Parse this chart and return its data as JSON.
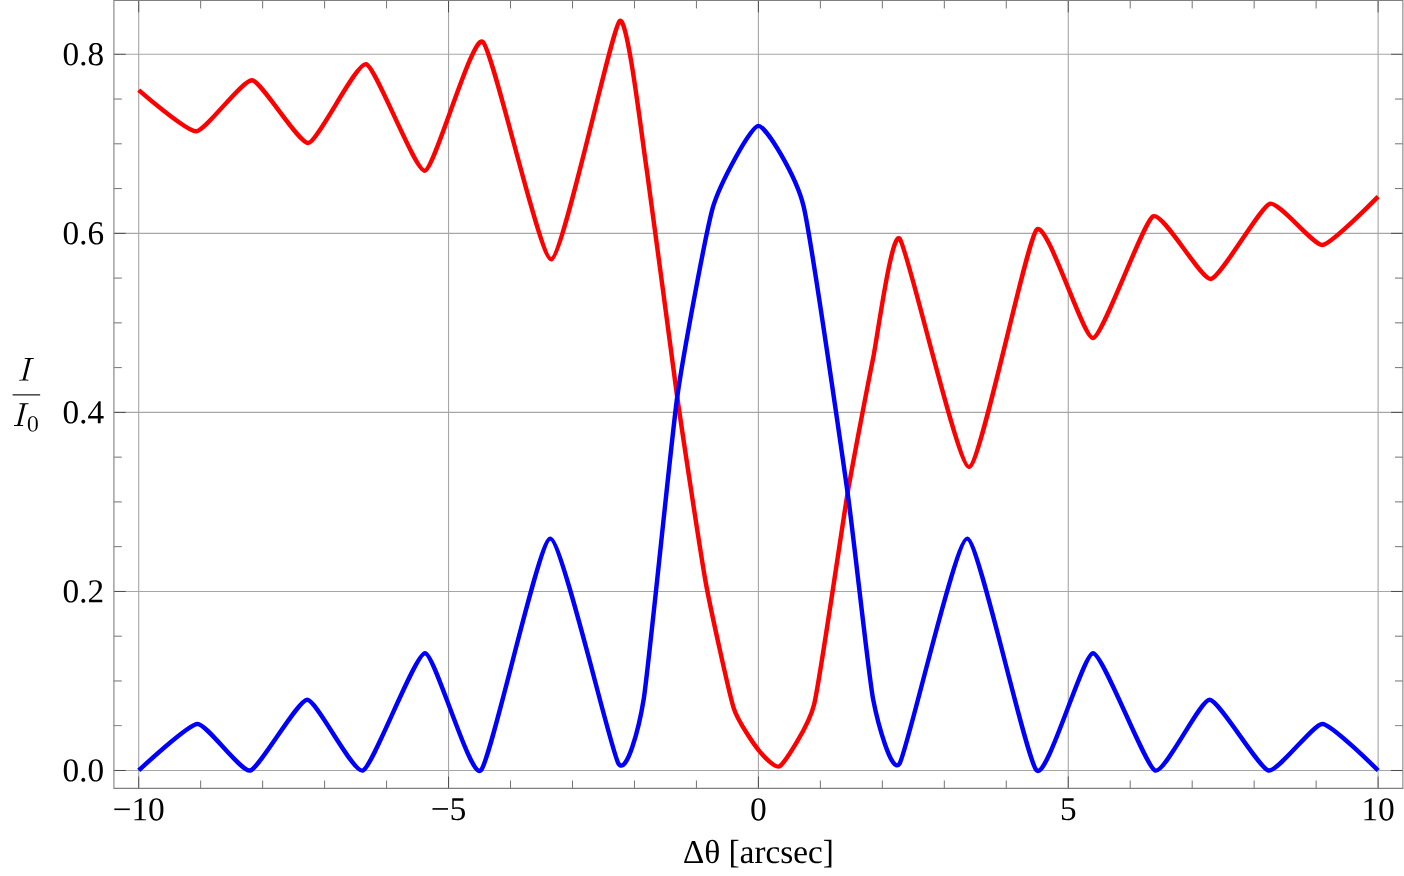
{
  "chart_data": {
    "type": "line",
    "xlabel": "Δθ [arcsec]",
    "ylabel": "\\frac{I}{I_0}",
    "xlim": [
      -10.4,
      10.4
    ],
    "ylim": [
      -0.02,
      0.86
    ],
    "xticks": [
      {
        "value": -10,
        "label": "−10"
      },
      {
        "value": -5,
        "label": "−5"
      },
      0,
      5,
      10
    ],
    "yticks": [
      {
        "value": 0,
        "label": "0.0"
      },
      {
        "value": 0.2,
        "label": "0.2"
      },
      {
        "value": 0.4,
        "label": "0.4"
      },
      {
        "value": 0.6,
        "label": "0.6"
      },
      {
        "value": 0.8,
        "label": "0.8"
      }
    ],
    "grid": true,
    "marker": "none",
    "line_style": "solid",
    "series": [
      {
        "color": "#ff0000",
        "x": [
          -10,
          -9.07,
          -8.17,
          -7.26,
          -6.33,
          -5.38,
          -4.45,
          -3.34,
          -2.24,
          -1.8,
          -1.31,
          -0.85,
          -0.4,
          0,
          0.35,
          0.9,
          1.44,
          1.85,
          2.28,
          3.4,
          4.49,
          5.4,
          6.37,
          7.3,
          8.25,
          9.1,
          10
        ],
        "values": [
          0.76,
          0.714,
          0.771,
          0.701,
          0.789,
          0.67,
          0.814,
          0.571,
          0.837,
          0.67,
          0.417,
          0.21,
          0.07,
          0.023,
          0.005,
          0.074,
          0.31,
          0.46,
          0.594,
          0.339,
          0.604,
          0.483,
          0.619,
          0.549,
          0.633,
          0.587,
          0.641
        ]
      },
      {
        "color": "#0000ff",
        "x": [
          -10,
          -9.05,
          -8.2,
          -7.28,
          -6.38,
          -5.38,
          -4.48,
          -3.36,
          -2.26,
          -1.85,
          -1.31,
          -0.73,
          0,
          0.73,
          1.44,
          1.85,
          2.28,
          3.37,
          4.49,
          5.4,
          6.4,
          7.28,
          8.23,
          9.1,
          10
        ],
        "values": [
          0,
          0.052,
          0,
          0.079,
          0,
          0.131,
          0,
          0.259,
          0.008,
          0.08,
          0.417,
          0.63,
          0.72,
          0.63,
          0.31,
          0.08,
          0.008,
          0.259,
          0,
          0.131,
          0,
          0.079,
          0,
          0.052,
          0
        ]
      }
    ]
  }
}
